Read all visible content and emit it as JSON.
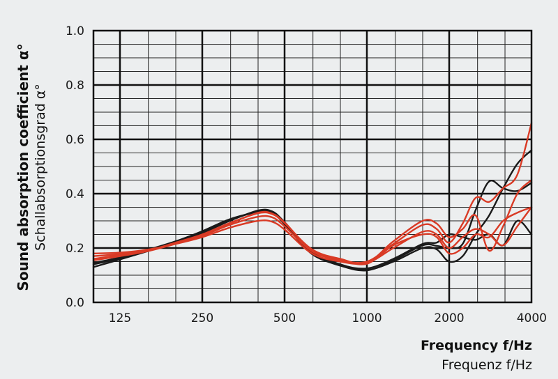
{
  "chart_data": {
    "type": "line",
    "ylabel": "Sound absorption coefficient α°",
    "ylabel_secondary": "Schallabsorptionsgrad α°",
    "xlabel": "Frequency f/Hz",
    "xlabel_secondary": "Frequenz f/Hz",
    "x_scale": "log",
    "xlim": [
      100,
      4000
    ],
    "ylim": [
      0,
      1.0
    ],
    "y_ticks": [
      "0.0",
      "0.2",
      "0.4",
      "0.6",
      "0.8",
      "1.0"
    ],
    "x_ticks": [
      {
        "value": 125,
        "label": "125"
      },
      {
        "value": 250,
        "label": "250"
      },
      {
        "value": 500,
        "label": "500"
      },
      {
        "value": 1000,
        "label": "1000"
      },
      {
        "value": 2000,
        "label": "2000"
      },
      {
        "value": 4000,
        "label": "4000"
      }
    ],
    "grid": true,
    "series_colors": {
      "black": "#1a1a1a",
      "red": "#d93a25"
    },
    "series": [
      {
        "color": "black",
        "points": [
          [
            100,
            0.13
          ],
          [
            125,
            0.158
          ],
          [
            160,
            0.19
          ],
          [
            200,
            0.22
          ],
          [
            250,
            0.255
          ],
          [
            315,
            0.3
          ],
          [
            400,
            0.338
          ],
          [
            450,
            0.335
          ],
          [
            500,
            0.295
          ],
          [
            630,
            0.185
          ],
          [
            800,
            0.14
          ],
          [
            1000,
            0.12
          ],
          [
            1250,
            0.15
          ],
          [
            1600,
            0.2
          ],
          [
            1800,
            0.195
          ],
          [
            2000,
            0.15
          ],
          [
            2240,
            0.17
          ],
          [
            2500,
            0.25
          ],
          [
            2800,
            0.32
          ],
          [
            3150,
            0.42
          ],
          [
            3550,
            0.51
          ],
          [
            4000,
            0.56
          ]
        ]
      },
      {
        "color": "black",
        "points": [
          [
            100,
            0.14
          ],
          [
            125,
            0.162
          ],
          [
            160,
            0.192
          ],
          [
            200,
            0.222
          ],
          [
            250,
            0.258
          ],
          [
            315,
            0.302
          ],
          [
            400,
            0.335
          ],
          [
            450,
            0.332
          ],
          [
            500,
            0.29
          ],
          [
            630,
            0.18
          ],
          [
            800,
            0.135
          ],
          [
            1000,
            0.118
          ],
          [
            1250,
            0.155
          ],
          [
            1600,
            0.21
          ],
          [
            1800,
            0.208
          ],
          [
            2000,
            0.2
          ],
          [
            2240,
            0.215
          ],
          [
            2500,
            0.34
          ],
          [
            2800,
            0.445
          ],
          [
            3150,
            0.42
          ],
          [
            3550,
            0.41
          ],
          [
            4000,
            0.44
          ]
        ]
      },
      {
        "color": "black",
        "points": [
          [
            100,
            0.145
          ],
          [
            125,
            0.165
          ],
          [
            160,
            0.195
          ],
          [
            200,
            0.225
          ],
          [
            250,
            0.262
          ],
          [
            315,
            0.306
          ],
          [
            400,
            0.332
          ],
          [
            450,
            0.33
          ],
          [
            500,
            0.288
          ],
          [
            630,
            0.178
          ],
          [
            800,
            0.138
          ],
          [
            1000,
            0.125
          ],
          [
            1250,
            0.16
          ],
          [
            1600,
            0.215
          ],
          [
            1800,
            0.22
          ],
          [
            2000,
            0.25
          ],
          [
            2240,
            0.24
          ],
          [
            2500,
            0.23
          ],
          [
            2800,
            0.25
          ],
          [
            3150,
            0.21
          ],
          [
            3550,
            0.3
          ],
          [
            4000,
            0.25
          ]
        ]
      },
      {
        "color": "red",
        "points": [
          [
            100,
            0.18
          ],
          [
            125,
            0.183
          ],
          [
            160,
            0.195
          ],
          [
            200,
            0.215
          ],
          [
            250,
            0.24
          ],
          [
            315,
            0.275
          ],
          [
            400,
            0.3
          ],
          [
            450,
            0.297
          ],
          [
            500,
            0.268
          ],
          [
            630,
            0.18
          ],
          [
            800,
            0.15
          ],
          [
            1000,
            0.145
          ],
          [
            1250,
            0.2
          ],
          [
            1600,
            0.26
          ],
          [
            1800,
            0.25
          ],
          [
            2000,
            0.2
          ],
          [
            2240,
            0.24
          ],
          [
            2500,
            0.27
          ],
          [
            2800,
            0.25
          ],
          [
            3150,
            0.21
          ],
          [
            3550,
            0.28
          ],
          [
            4000,
            0.35
          ]
        ]
      },
      {
        "color": "red",
        "points": [
          [
            100,
            0.17
          ],
          [
            125,
            0.178
          ],
          [
            160,
            0.193
          ],
          [
            200,
            0.218
          ],
          [
            250,
            0.245
          ],
          [
            315,
            0.285
          ],
          [
            400,
            0.315
          ],
          [
            450,
            0.313
          ],
          [
            500,
            0.28
          ],
          [
            630,
            0.188
          ],
          [
            800,
            0.155
          ],
          [
            1000,
            0.15
          ],
          [
            1250,
            0.215
          ],
          [
            1600,
            0.285
          ],
          [
            1800,
            0.27
          ],
          [
            2000,
            0.22
          ],
          [
            2240,
            0.29
          ],
          [
            2500,
            0.385
          ],
          [
            2800,
            0.37
          ],
          [
            3150,
            0.42
          ],
          [
            3550,
            0.47
          ],
          [
            4000,
            0.66
          ]
        ]
      },
      {
        "color": "red",
        "points": [
          [
            100,
            0.16
          ],
          [
            125,
            0.174
          ],
          [
            160,
            0.192
          ],
          [
            200,
            0.22
          ],
          [
            250,
            0.25
          ],
          [
            315,
            0.292
          ],
          [
            400,
            0.328
          ],
          [
            450,
            0.325
          ],
          [
            500,
            0.292
          ],
          [
            630,
            0.195
          ],
          [
            800,
            0.16
          ],
          [
            1000,
            0.145
          ],
          [
            1250,
            0.225
          ],
          [
            1600,
            0.3
          ],
          [
            1800,
            0.29
          ],
          [
            2000,
            0.24
          ],
          [
            2240,
            0.27
          ],
          [
            2500,
            0.32
          ],
          [
            2800,
            0.19
          ],
          [
            3150,
            0.28
          ],
          [
            3550,
            0.4
          ],
          [
            4000,
            0.45
          ]
        ]
      },
      {
        "color": "red",
        "points": [
          [
            100,
            0.155
          ],
          [
            125,
            0.17
          ],
          [
            160,
            0.19
          ],
          [
            200,
            0.216
          ],
          [
            250,
            0.248
          ],
          [
            315,
            0.29
          ],
          [
            400,
            0.33
          ],
          [
            450,
            0.327
          ],
          [
            500,
            0.294
          ],
          [
            630,
            0.192
          ],
          [
            800,
            0.158
          ],
          [
            1000,
            0.142
          ],
          [
            1250,
            0.21
          ],
          [
            1600,
            0.25
          ],
          [
            1800,
            0.24
          ],
          [
            2000,
            0.18
          ],
          [
            2240,
            0.2
          ],
          [
            2500,
            0.25
          ],
          [
            2800,
            0.24
          ],
          [
            3150,
            0.3
          ],
          [
            3550,
            0.33
          ],
          [
            4000,
            0.35
          ]
        ]
      }
    ]
  }
}
